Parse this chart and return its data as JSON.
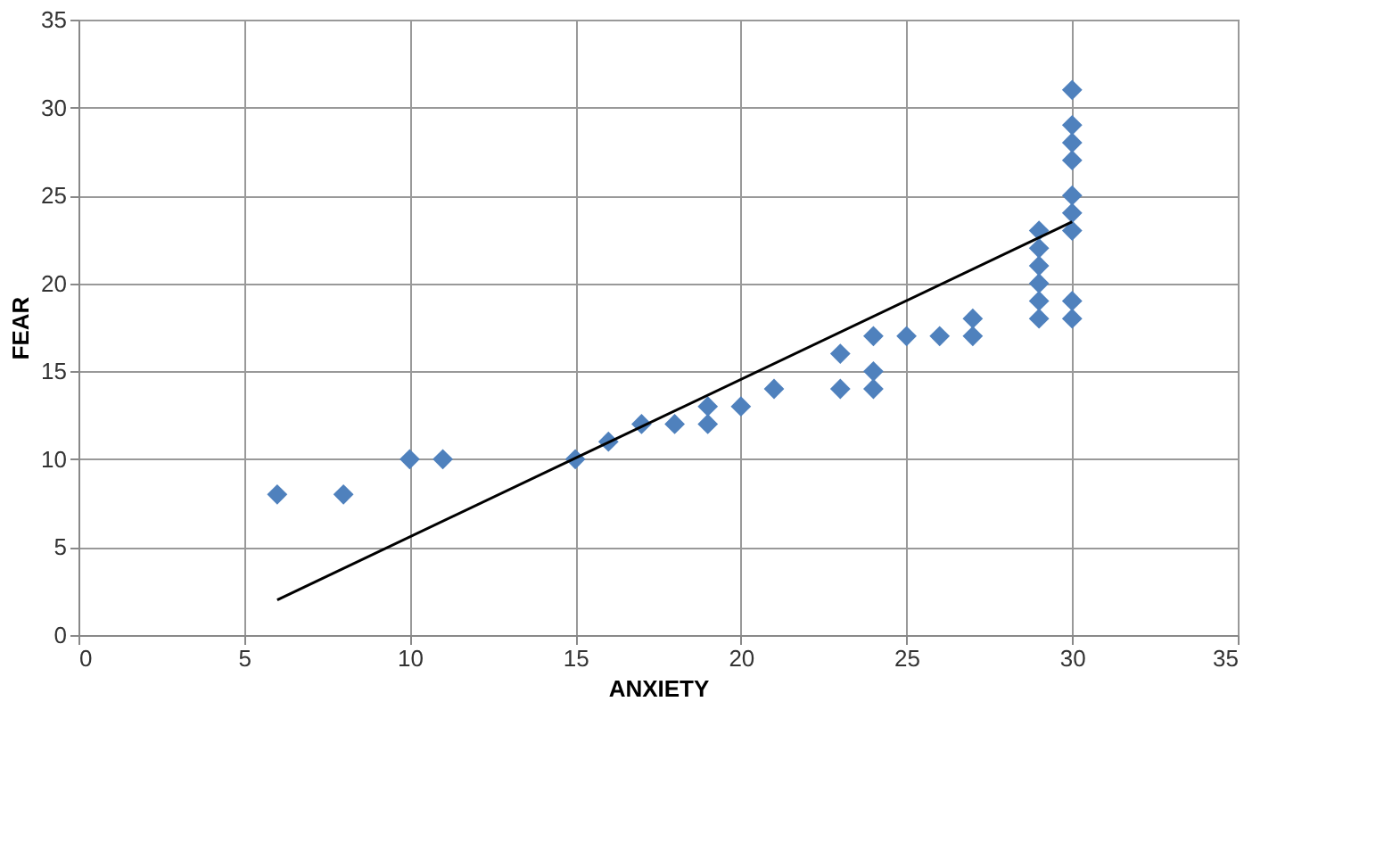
{
  "chart_data": {
    "type": "scatter",
    "xlabel": "ANXIETY",
    "ylabel": "FEAR",
    "xlim": [
      0,
      35
    ],
    "ylim": [
      0,
      35
    ],
    "xticks": [
      0,
      5,
      10,
      15,
      20,
      25,
      30,
      35
    ],
    "yticks": [
      0,
      5,
      10,
      15,
      20,
      25,
      30,
      35
    ],
    "grid": true,
    "series": [
      {
        "color": "#4f81bd",
        "marker": "diamond",
        "x": [
          6,
          8,
          10,
          11,
          15,
          16,
          17,
          18,
          19,
          19,
          20,
          21,
          23,
          23,
          24,
          24,
          24,
          25,
          26,
          27,
          27,
          29,
          29,
          29,
          29,
          29,
          29,
          30,
          30,
          30,
          30,
          30,
          30,
          30,
          30,
          30
        ],
        "values": [
          8,
          8,
          10,
          10,
          10,
          11,
          12,
          12,
          12,
          13,
          13,
          14,
          14,
          16,
          14,
          15,
          17,
          17,
          17,
          17,
          18,
          18,
          19,
          20,
          21,
          22,
          23,
          18,
          19,
          23,
          24,
          25,
          27,
          28,
          29,
          31
        ]
      },
      {
        "type": "line",
        "color": "#000000",
        "marker": "none",
        "x": [
          6,
          30
        ],
        "values": [
          2,
          23.5
        ]
      }
    ]
  }
}
